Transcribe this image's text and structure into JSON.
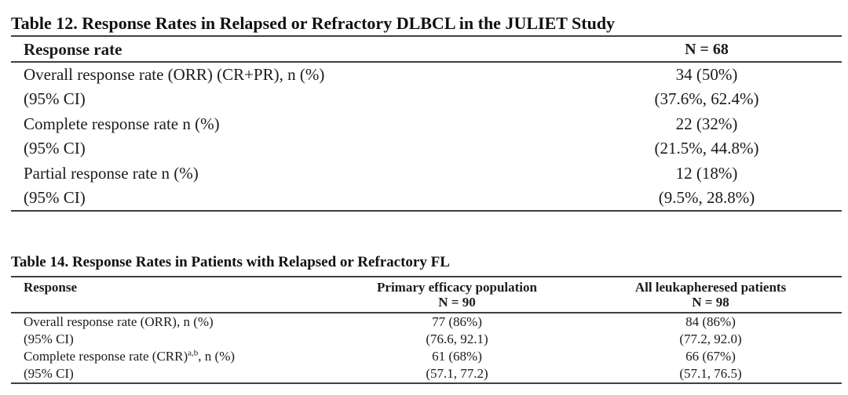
{
  "page": {
    "background": "#ffffff",
    "text_color": "#1b1b1b",
    "rule_color": "#3f3f3f"
  },
  "table12": {
    "title": "Table 12. Response Rates in Relapsed or Refractory DLBCL in the JULIET Study",
    "header": {
      "col1": "Response rate",
      "col2": "N = 68"
    },
    "rows": [
      {
        "label": "Overall response rate (ORR) (CR+PR), n (%)",
        "value": "34 (50%)"
      },
      {
        "label": "(95% CI)",
        "value": "(37.6%, 62.4%)"
      },
      {
        "label": "Complete response rate n (%)",
        "value": "22 (32%)"
      },
      {
        "label": "(95% CI)",
        "value": "(21.5%, 44.8%)"
      },
      {
        "label": "Partial response rate n (%)",
        "value": "12 (18%)"
      },
      {
        "label": "(95% CI)",
        "value": "(9.5%, 28.8%)"
      }
    ]
  },
  "table14": {
    "title": "Table 14. Response Rates in Patients with Relapsed or Refractory FL",
    "header": {
      "col1": "Response",
      "col2_label": "Primary efficacy population",
      "col2_n": "N = 90",
      "col3_label": "All leukapheresed patients",
      "col3_n": "N = 98"
    },
    "rows": [
      {
        "label": "Overall response rate (ORR), n (%)",
        "primary": "77 (86%)",
        "all": "84 (86%)"
      },
      {
        "label": "(95% CI)",
        "primary": "(76.6, 92.1)",
        "all": "(77.2, 92.0)"
      },
      {
        "label_prefix": "Complete response rate (CRR)",
        "label_sup": "a,b",
        "label_suffix": ", n (%)",
        "primary": "61 (68%)",
        "all": "66 (67%)"
      },
      {
        "label": "(95% CI)",
        "primary": "(57.1, 77.2)",
        "all": "(57.1, 76.5)"
      }
    ]
  }
}
